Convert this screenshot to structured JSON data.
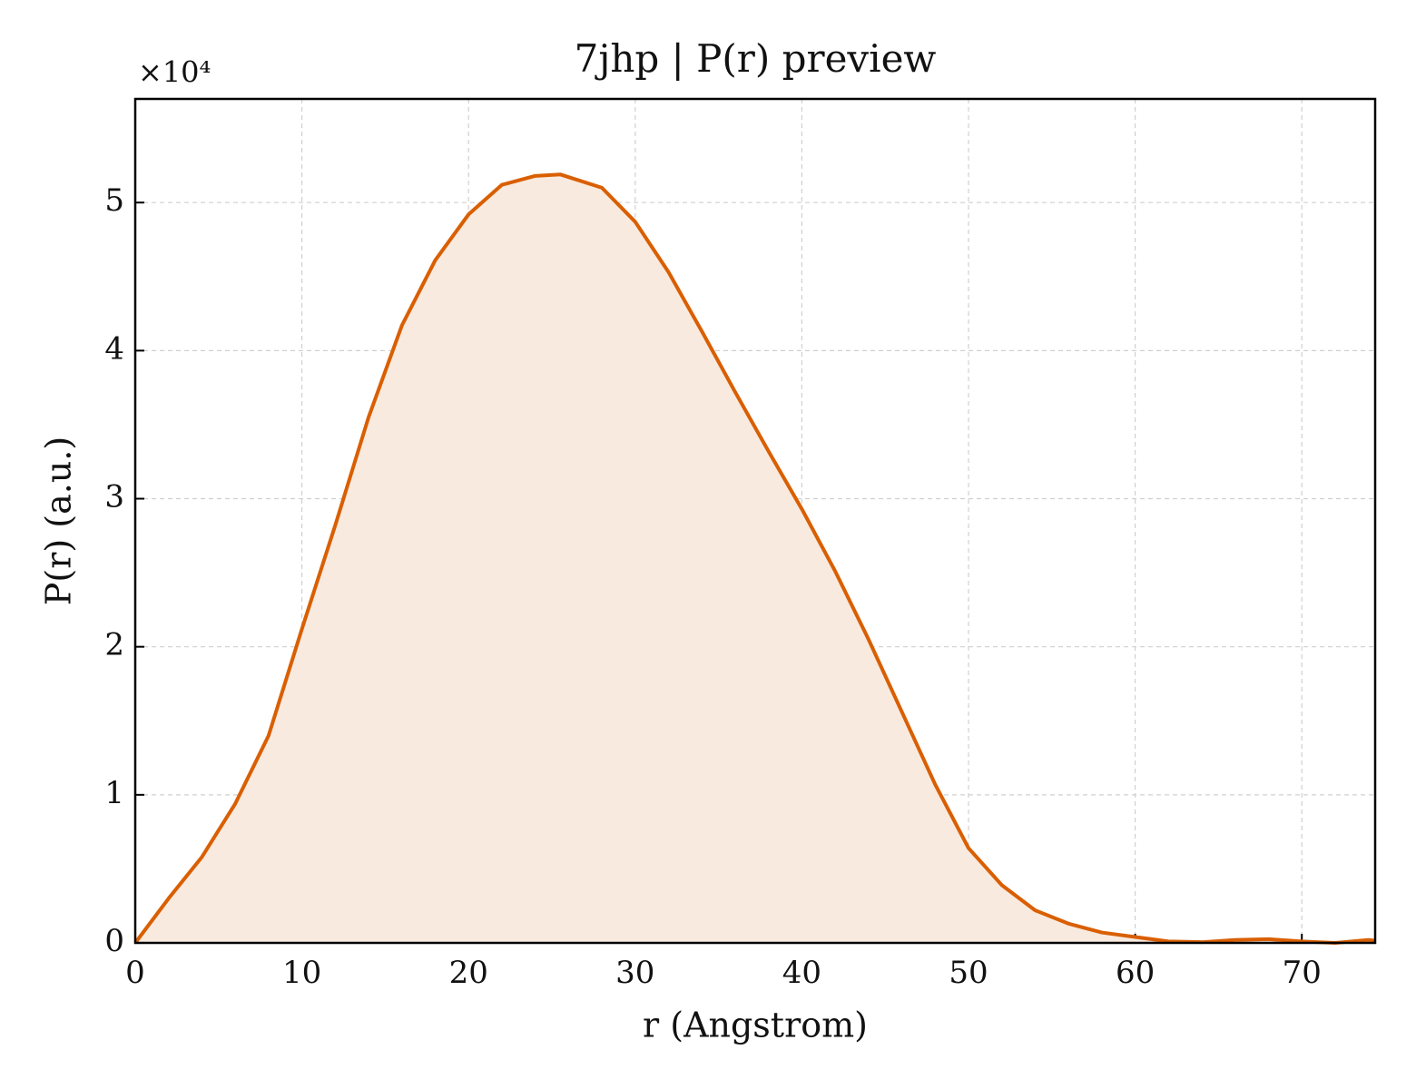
{
  "chart_data": {
    "type": "line",
    "title": "7jhp | P(r) preview",
    "x_label": "r (Angstrom)",
    "y_label": "P(r) (a.u.)",
    "y_offset_label": "×10⁴",
    "x": [
      0,
      2,
      4,
      6,
      8,
      10,
      12,
      14,
      16,
      18,
      20,
      22,
      24,
      25.5,
      28,
      30,
      32,
      34,
      36,
      38,
      40,
      42,
      44,
      46,
      48,
      50,
      52,
      54,
      56,
      58,
      60,
      62,
      64,
      66,
      68,
      70,
      72,
      74,
      74.4
    ],
    "series": [
      {
        "name": "P(r)",
        "color": "#d95f02",
        "fill": "#f9eadf",
        "values": [
          0,
          0.3,
          0.58,
          0.94,
          1.4,
          2.12,
          2.82,
          3.55,
          4.17,
          4.61,
          4.92,
          5.12,
          5.18,
          5.19,
          5.1,
          4.87,
          4.53,
          4.13,
          3.72,
          3.32,
          2.93,
          2.51,
          2.05,
          1.56,
          1.07,
          0.64,
          0.39,
          0.22,
          0.13,
          0.07,
          0.04,
          0.01,
          0.005,
          0.02,
          0.025,
          0.01,
          0,
          0.02,
          0.015
        ]
      }
    ],
    "xlim": [
      0,
      74.4
    ],
    "ylim": [
      0,
      5.7
    ],
    "xticks": [
      0,
      10,
      20,
      30,
      40,
      50,
      60,
      70
    ],
    "yticks": [
      0,
      1,
      2,
      3,
      4,
      5
    ],
    "grid": true
  }
}
